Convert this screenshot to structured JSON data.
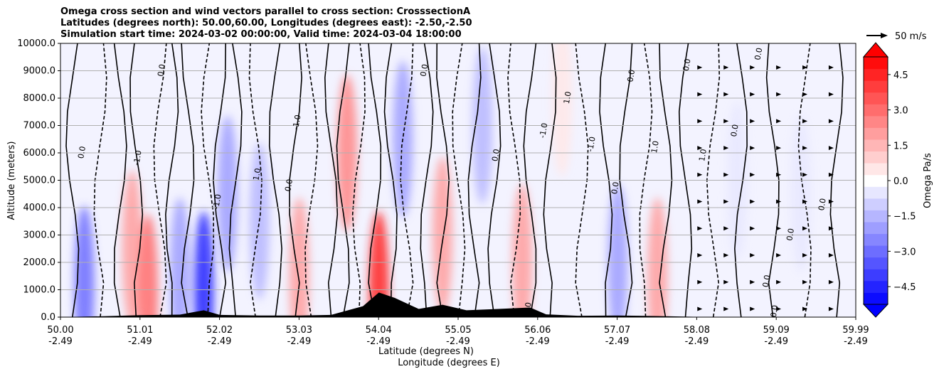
{
  "chart_data": {
    "type": "heatmap",
    "title_lines": [
      "Omega cross section and wind vectors parallel to cross section: CrosssectionA",
      "Latitudes (degrees north): 50.00,60.00, Longitudes (degrees east): -2.50,-2.50",
      "Simulation start time: 2024-03-02 00:00:00, Valid time: 2024-03-04 18:00:00"
    ],
    "ylabel": "Altitude (meters)",
    "xlabel_lat": "Latitude (degrees N)",
    "xlabel_lon": "Longitude (degrees E)",
    "ylim": [
      0,
      10000
    ],
    "y_ticks": [
      "0.0",
      "1000.0",
      "2000.0",
      "3000.0",
      "4000.0",
      "5000.0",
      "6000.0",
      "7000.0",
      "8000.0",
      "9000.0",
      "10000.0"
    ],
    "x_ticks_lat": [
      "50.00",
      "51.01",
      "52.02",
      "53.03",
      "54.04",
      "55.05",
      "56.06",
      "57.07",
      "58.08",
      "59.09",
      "59.99"
    ],
    "x_ticks_lon": [
      "-2.49",
      "-2.49",
      "-2.49",
      "-2.49",
      "-2.49",
      "-2.49",
      "-2.49",
      "-2.49",
      "-2.49",
      "-2.49",
      "-2.49"
    ],
    "colorbar": {
      "label": "Omega Pa/s",
      "range": [
        -5.25,
        5.25
      ],
      "tick_values": [
        4.5,
        3.0,
        1.5,
        0.0,
        -1.5,
        -3.0,
        -4.5
      ],
      "tick_labels": [
        "4.5",
        "3.0",
        "1.5",
        "0.0",
        "−1.5",
        "−3.0",
        "−4.5"
      ]
    },
    "vector_key": {
      "label": "50 m/s",
      "value": 50
    },
    "contour_labels": [
      "0.0",
      "0.0",
      "0.0",
      "1.0",
      "1.0",
      "-1.0",
      "-1.0",
      "0.0",
      "1.0",
      "0.0",
      "-1.0",
      "0.0",
      "1.0",
      "0.0",
      "0.0",
      "0.0",
      "0.0",
      "0.0",
      "1.0",
      "-1.0",
      "0.0",
      "-1.0",
      "0.0",
      "0.0"
    ],
    "omega_fields": [
      {
        "lat": 50.3,
        "alt": 1200,
        "value": -3.0
      },
      {
        "lat": 50.9,
        "alt": 2500,
        "value": 2.0
      },
      {
        "lat": 51.1,
        "alt": 900,
        "value": 3.0
      },
      {
        "lat": 51.5,
        "alt": 1500,
        "value": -2.0
      },
      {
        "lat": 51.8,
        "alt": 1000,
        "value": -4.5
      },
      {
        "lat": 52.1,
        "alt": 4500,
        "value": -2.0
      },
      {
        "lat": 52.5,
        "alt": 3500,
        "value": -1.5
      },
      {
        "lat": 53.0,
        "alt": 1500,
        "value": 2.0
      },
      {
        "lat": 53.6,
        "alt": 6000,
        "value": 2.5
      },
      {
        "lat": 54.0,
        "alt": 1000,
        "value": 4.5
      },
      {
        "lat": 54.3,
        "alt": 6500,
        "value": -2.0
      },
      {
        "lat": 54.8,
        "alt": 3000,
        "value": 2.0
      },
      {
        "lat": 55.3,
        "alt": 7000,
        "value": -1.5
      },
      {
        "lat": 55.8,
        "alt": 2000,
        "value": 2.0
      },
      {
        "lat": 56.3,
        "alt": 8000,
        "value": 0.5
      },
      {
        "lat": 57.0,
        "alt": 2000,
        "value": -2.0
      },
      {
        "lat": 57.5,
        "alt": 1500,
        "value": 2.0
      },
      {
        "lat": 58.5,
        "alt": 5000,
        "value": -0.5
      },
      {
        "lat": 59.3,
        "alt": 4500,
        "value": -0.5
      }
    ]
  }
}
